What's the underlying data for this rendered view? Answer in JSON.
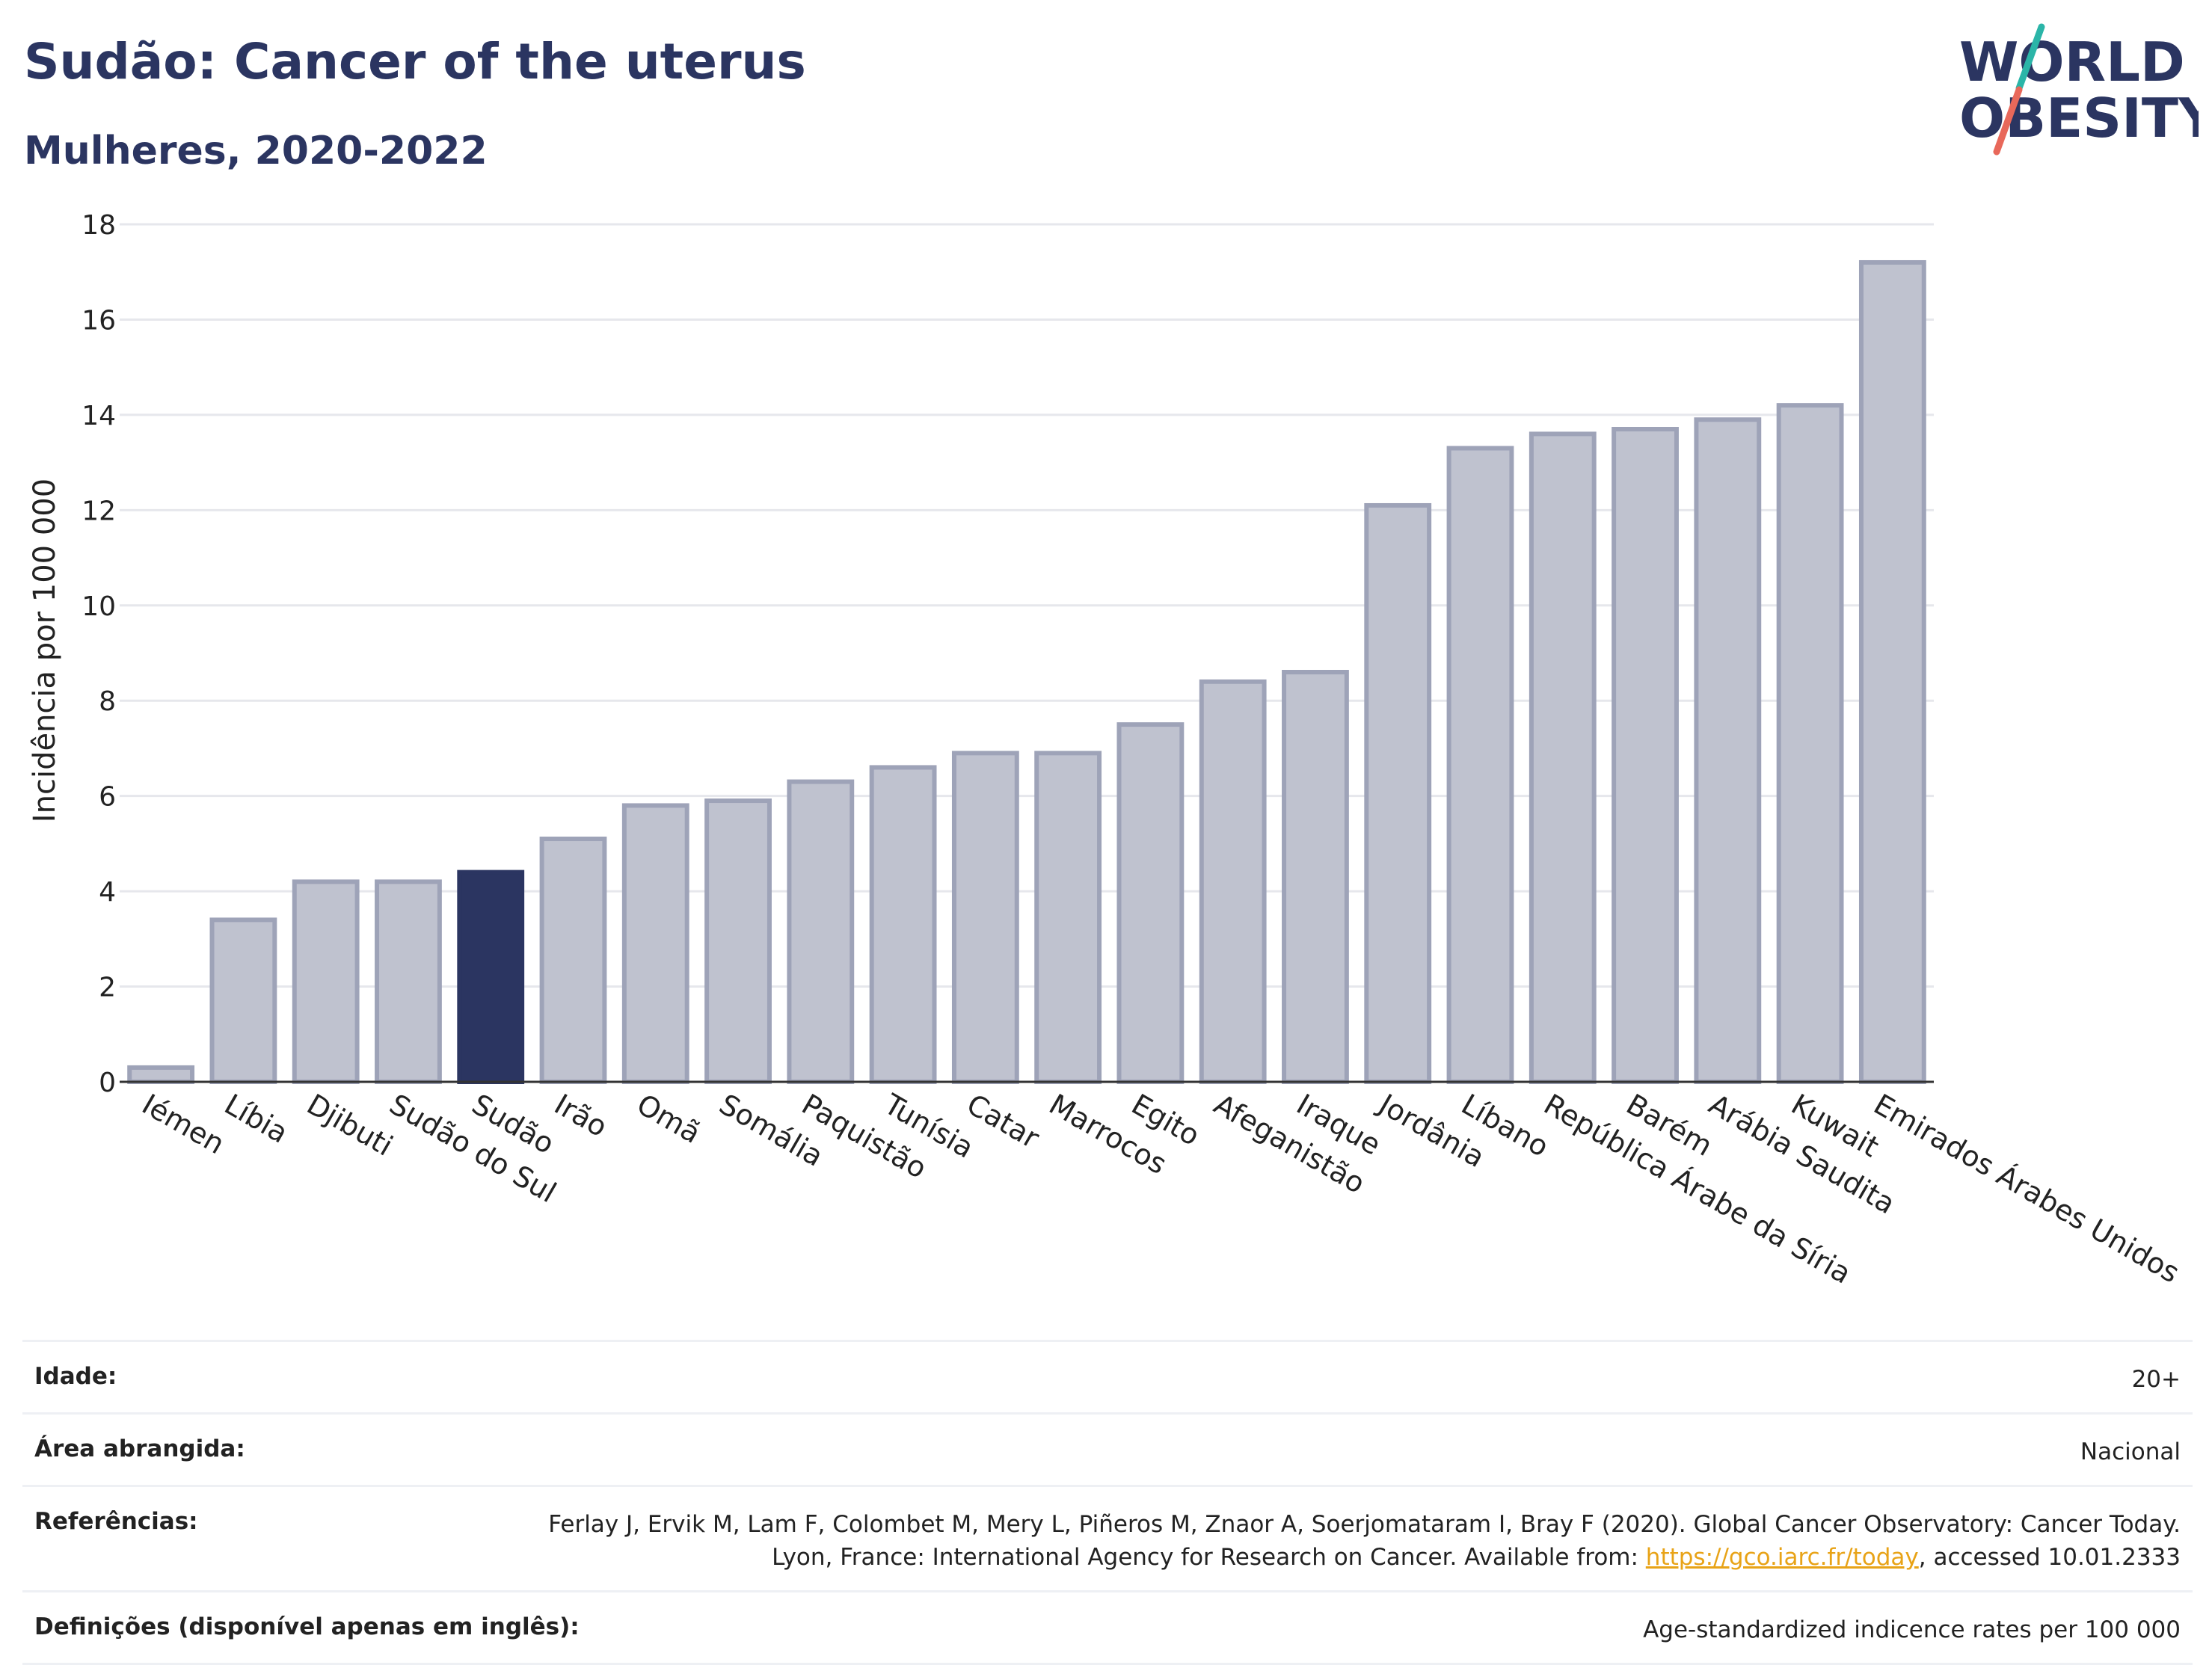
{
  "header": {
    "title": "Sudão: Cancer of the uterus",
    "subtitle": "Mulheres, 2020-2022"
  },
  "logo": {
    "line1": "WORLD",
    "line2": "OBESITY",
    "accent_colors": [
      "#2bb5a8",
      "#e8685a"
    ]
  },
  "colors": {
    "bar": "#bfc2cf",
    "bar_border": "#9ea3b8",
    "highlight": "#2b3561",
    "text_dark": "#2b3561",
    "grid": "#e6e7ec"
  },
  "chart_data": {
    "type": "bar",
    "ylabel": "Incidência por 100 000",
    "ylim": [
      0,
      18
    ],
    "yticks": [
      0,
      2,
      4,
      6,
      8,
      10,
      12,
      14,
      16,
      18
    ],
    "grid": true,
    "highlight": "Sudão",
    "categories": [
      "Iémen",
      "Líbia",
      "Djibuti",
      "Sudão do Sul",
      "Sudão",
      "Irão",
      "Omã",
      "Somália",
      "Paquistão",
      "Tunísia",
      "Catar",
      "Marrocos",
      "Egito",
      "Afeganistão",
      "Iraque",
      "Jordânia",
      "Líbano",
      "República Árabe da Síria",
      "Barém",
      "Arábia Saudita",
      "Kuwait",
      "Emirados Árabes Unidos"
    ],
    "values": [
      0.3,
      3.4,
      4.2,
      4.2,
      4.4,
      5.1,
      5.8,
      5.9,
      6.3,
      6.6,
      6.9,
      6.9,
      7.5,
      8.4,
      8.6,
      12.1,
      13.3,
      13.6,
      13.7,
      13.9,
      14.2,
      17.2
    ]
  },
  "meta": {
    "rows": [
      {
        "label": "Idade:",
        "value": "20+"
      },
      {
        "label": "Área abrangida:",
        "value": "Nacional"
      },
      {
        "label": "Referências:",
        "value_pre": "Ferlay J, Ervik M, Lam F, Colombet M, Mery L, Piñeros M, Znaor A, Soerjomataram I, Bray F (2020). Global Cancer Observatory: Cancer Today. Lyon, France: International Agency for Research on Cancer. Available from: ",
        "link": "https://gco.iarc.fr/today",
        "value_post": ", accessed 10.01.2333"
      },
      {
        "label": "Definições (disponível apenas em inglês):",
        "value": "Age-standardized indicence rates per 100 000"
      }
    ]
  }
}
